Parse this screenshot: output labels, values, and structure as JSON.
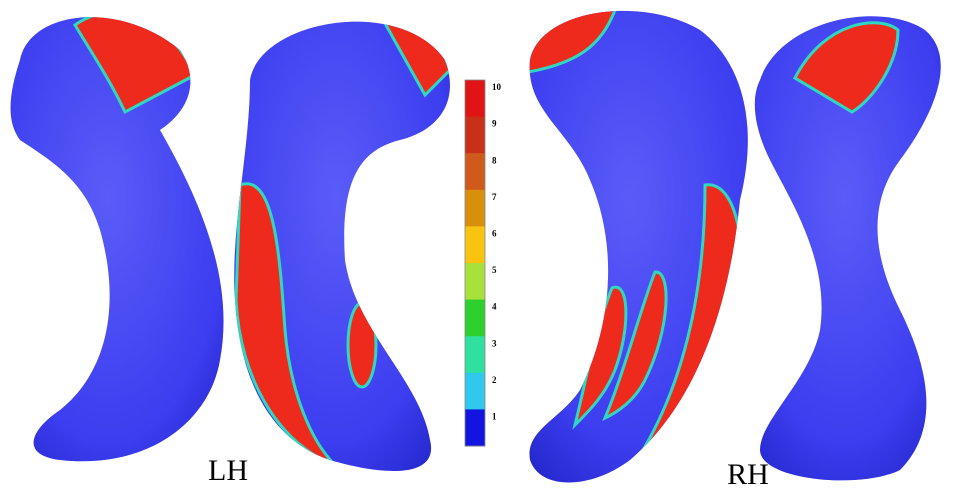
{
  "labels": {
    "left": "LH",
    "right": "RH"
  },
  "colorbar": {
    "levels": [
      {
        "label": "10",
        "color": "#e01414"
      },
      {
        "label": "9",
        "color": "#c8301a"
      },
      {
        "label": "8",
        "color": "#d05a1c"
      },
      {
        "label": "7",
        "color": "#d8900c"
      },
      {
        "label": "6",
        "color": "#f8c410"
      },
      {
        "label": "5",
        "color": "#a8e03c"
      },
      {
        "label": "4",
        "color": "#2ed02e"
      },
      {
        "label": "3",
        "color": "#30e0a0"
      },
      {
        "label": "2",
        "color": "#30c8ec"
      },
      {
        "label": "1",
        "color": "#1414e0"
      }
    ]
  }
}
